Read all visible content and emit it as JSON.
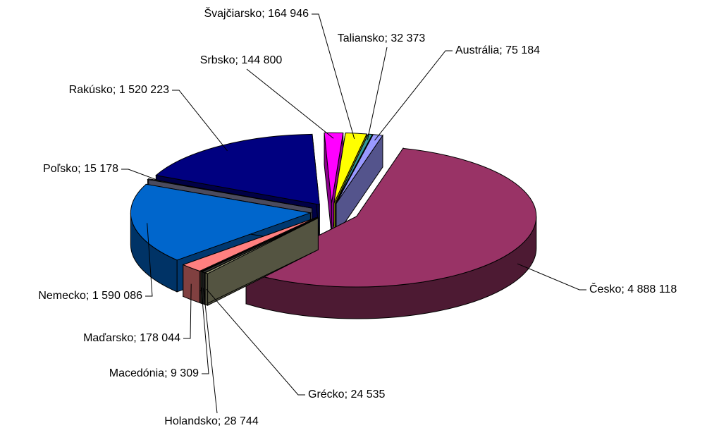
{
  "chart_data": {
    "type": "pie",
    "categories": [
      "Česko",
      "Grécko",
      "Holandsko",
      "Macedónia",
      "Maďarsko",
      "Nemecko",
      "Poľsko",
      "Rakúsko",
      "Srbsko",
      "Švajčiarsko",
      "Taliansko",
      "Austrália"
    ],
    "values": [
      4888118,
      24535,
      28744,
      9309,
      178044,
      1590086,
      15178,
      1520223,
      144800,
      164946,
      32373,
      75184
    ],
    "value_labels": [
      "4 888 118",
      "24 535",
      "28 744",
      "9 309",
      "178 044",
      "1 590 086",
      "15 178",
      "1 520 223",
      "144 800",
      "164 946",
      "32 373",
      "75 184"
    ],
    "separator": "; ",
    "colors": [
      "#993366",
      "#999977",
      "#333333",
      "#ccffcc",
      "#ff8080",
      "#0066cc",
      "#8888aa",
      "#000080",
      "#ff00ff",
      "#ffff00",
      "#339999",
      "#9999ff"
    ]
  }
}
